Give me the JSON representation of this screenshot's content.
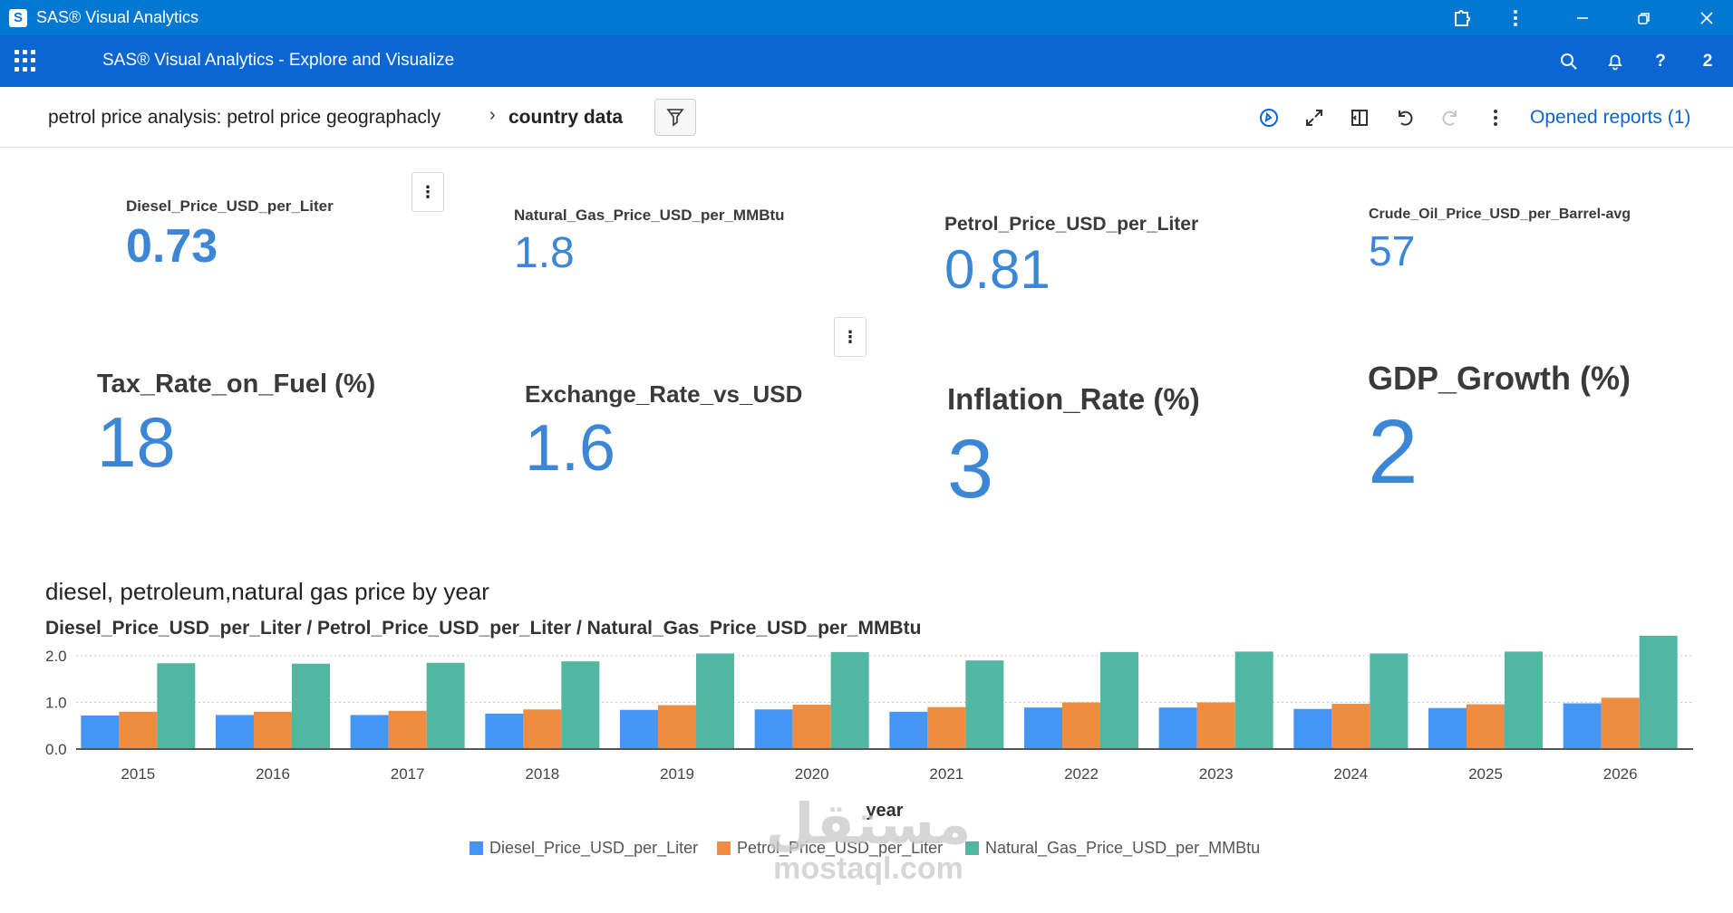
{
  "window": {
    "title": "SAS® Visual Analytics",
    "logo_letter": "S"
  },
  "appbar": {
    "title": "SAS® Visual Analytics - Explore and Visualize",
    "help_label": "?",
    "user_badge": "2"
  },
  "toolbar": {
    "report_name": "petrol price analysis: petrol price geographacly",
    "separator": "›",
    "current_page": "country data",
    "opened_reports": "Opened reports (1)"
  },
  "kpis_row1": [
    {
      "label": "Diesel_Price_USD_per_Liter",
      "value": "0.73"
    },
    {
      "label": "Natural_Gas_Price_USD_per_MMBtu",
      "value": "1.8"
    },
    {
      "label": "Petrol_Price_USD_per_Liter",
      "value": "0.81"
    },
    {
      "label": "Crude_Oil_Price_USD_per_Barrel-avg",
      "value": "57"
    }
  ],
  "kpis_row2": [
    {
      "label": "Tax_Rate_on_Fuel (%)",
      "value": "18"
    },
    {
      "label": "Exchange_Rate_vs_USD",
      "value": "1.6"
    },
    {
      "label": "Inflation_Rate (%)",
      "value": "3"
    },
    {
      "label": "GDP_Growth (%)",
      "value": "2"
    }
  ],
  "chart_data": {
    "type": "bar",
    "title": "diesel, petroleum,natural gas price by year",
    "subtitle": "Diesel_Price_USD_per_Liter / Petrol_Price_USD_per_Liter / Natural_Gas_Price_USD_per_MMBtu",
    "xlabel": "year",
    "ylabel": "",
    "ylim": [
      0,
      2.2
    ],
    "yticks": [
      "0.0",
      "1.0",
      "2.0"
    ],
    "ytick_values": [
      0,
      1,
      2
    ],
    "grid": true,
    "legend_position": "bottom",
    "categories": [
      "2015",
      "2016",
      "2017",
      "2018",
      "2019",
      "2020",
      "2021",
      "2022",
      "2023",
      "2024",
      "2025",
      "2026"
    ],
    "series": [
      {
        "name": "Diesel_Price_USD_per_Liter",
        "color": "#4595f5",
        "values": [
          0.72,
          0.73,
          0.73,
          0.76,
          0.84,
          0.85,
          0.8,
          0.89,
          0.89,
          0.86,
          0.88,
          0.98
        ]
      },
      {
        "name": "Petrol_Price_USD_per_Liter",
        "color": "#f08c3f",
        "values": [
          0.8,
          0.8,
          0.82,
          0.85,
          0.94,
          0.95,
          0.9,
          1.0,
          1.0,
          0.97,
          0.96,
          1.1
        ]
      },
      {
        "name": "Natural_Gas_Price_USD_per_MMBtu",
        "color": "#52b7a2",
        "values": [
          1.84,
          1.83,
          1.85,
          1.88,
          2.05,
          2.08,
          1.9,
          2.08,
          2.09,
          2.05,
          2.09,
          2.43
        ]
      }
    ]
  },
  "watermark": {
    "arabic": "مستقل",
    "latin": "mostaql.com"
  }
}
